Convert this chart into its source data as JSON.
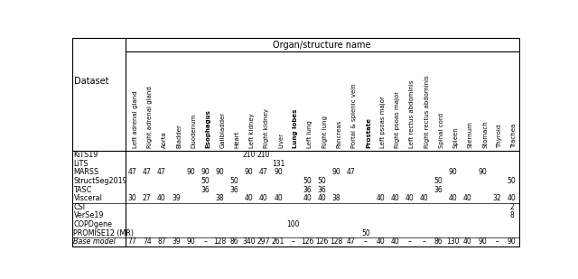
{
  "title": "Organ/structure name",
  "dataset_label": "Dataset",
  "columns": [
    "Left adrenal gland",
    "Right adrenal gland",
    "Aorta",
    "Bladder",
    "Duodenum",
    "Esophagus",
    "Gallbladder",
    "Heart",
    "Left kidney",
    "Right kidney",
    "Liver",
    "Lung lobes",
    "Left lung",
    "Right lung",
    "Pancreas",
    "Portal & splenic vein",
    "Prostate",
    "Left psoas major",
    "Right psoas major",
    "Left rectus abdominis",
    "Right rectus abdominis",
    "Spinal cord",
    "Spleen",
    "Sternum",
    "Stomach",
    "Thyroid",
    "Trachea"
  ],
  "bold_col_names": [
    "Esophagus",
    "Lung lobes",
    "Prostate"
  ],
  "rows": [
    {
      "name": "KiTS19",
      "italic": false,
      "separator_above": false,
      "values": {
        "Left kidney": "210",
        "Right kidney": "210"
      }
    },
    {
      "name": "LiTS",
      "italic": false,
      "separator_above": false,
      "values": {
        "Liver": "131"
      }
    },
    {
      "name": "MARSS",
      "italic": false,
      "separator_above": false,
      "values": {
        "Left adrenal gland": "47",
        "Right adrenal gland": "47",
        "Aorta": "47",
        "Duodenum": "90",
        "Esophagus": "90",
        "Gallbladder": "90",
        "Left kidney": "90",
        "Right kidney": "47",
        "Liver": "90",
        "Pancreas": "90",
        "Portal & splenic vein": "47",
        "Spleen": "90",
        "Stomach": "90"
      }
    },
    {
      "name": "StructSeg2019",
      "italic": false,
      "separator_above": false,
      "values": {
        "Esophagus": "50",
        "Heart": "50",
        "Left lung": "50",
        "Right lung": "50",
        "Spinal cord": "50",
        "Trachea": "50"
      }
    },
    {
      "name": "TASC",
      "italic": false,
      "separator_above": false,
      "values": {
        "Esophagus": "36",
        "Heart": "36",
        "Left lung": "36",
        "Right lung": "36",
        "Spinal cord": "36"
      }
    },
    {
      "name": "Visceral",
      "italic": false,
      "separator_above": false,
      "values": {
        "Left adrenal gland": "30",
        "Right adrenal gland": "27",
        "Aorta": "40",
        "Bladder": "39",
        "Gallbladder": "38",
        "Left kidney": "40",
        "Right kidney": "40",
        "Liver": "40",
        "Left lung": "40",
        "Right lung": "40",
        "Pancreas": "38",
        "Left psoas major": "40",
        "Right psoas major": "40",
        "Left rectus abdominis": "40",
        "Right rectus abdominis": "40",
        "Spleen": "40",
        "Sternum": "40",
        "Thyroid": "32",
        "Trachea": "40"
      }
    },
    {
      "name": "CSI",
      "italic": false,
      "separator_above": true,
      "values": {
        "Trachea": "2"
      }
    },
    {
      "name": "VerSe19",
      "italic": false,
      "separator_above": false,
      "values": {
        "Trachea": "8"
      }
    },
    {
      "name": "COPDgene",
      "italic": false,
      "separator_above": false,
      "values": {
        "Lung lobes": "100"
      }
    },
    {
      "name": "PROMISE12 (MR)",
      "italic": false,
      "separator_above": false,
      "values": {
        "Prostate": "50"
      }
    },
    {
      "name": "Base model",
      "italic": true,
      "separator_above": true,
      "values": {
        "Left adrenal gland": "77",
        "Right adrenal gland": "74",
        "Aorta": "87",
        "Bladder": "39",
        "Duodenum": "90",
        "Esophagus": "–",
        "Gallbladder": "128",
        "Heart": "86",
        "Left kidney": "340",
        "Right kidney": "297",
        "Liver": "261",
        "Lung lobes": "–",
        "Left lung": "126",
        "Right lung": "126",
        "Pancreas": "128",
        "Portal & splenic vein": "47",
        "Prostate": "–",
        "Left psoas major": "40",
        "Right psoas major": "40",
        "Left rectus abdominis": "–",
        "Right rectus abdominis": "–",
        "Spinal cord": "86",
        "Spleen": "130",
        "Sternum": "40",
        "Stomach": "90",
        "Thyroid": "–",
        "Trachea": "90"
      }
    }
  ],
  "figsize": [
    6.4,
    3.09
  ],
  "dpi": 100
}
